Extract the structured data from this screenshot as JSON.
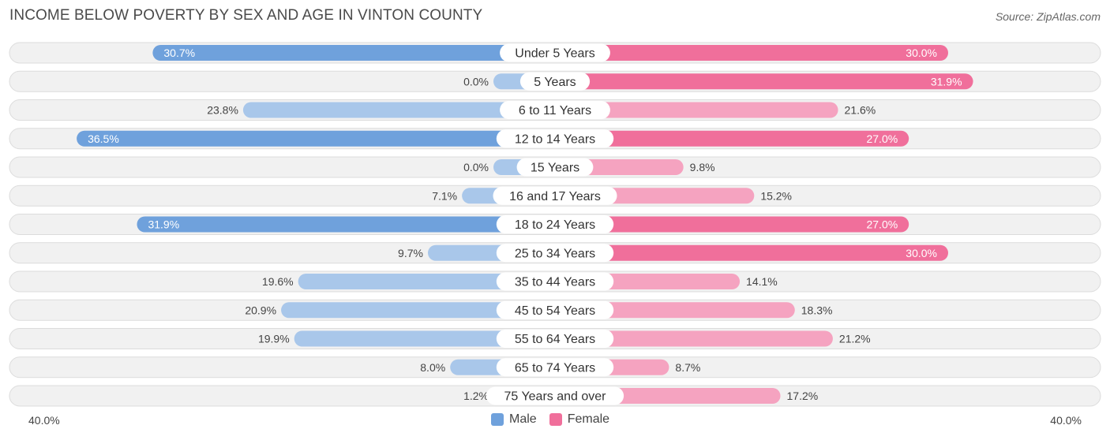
{
  "header": {
    "title": "INCOME BELOW POVERTY BY SEX AND AGE IN VINTON COUNTY",
    "source": "Source: ZipAtlas.com"
  },
  "axis": {
    "left_label": "40.0%",
    "right_label": "40.0%"
  },
  "legend": {
    "male": "Male",
    "female": "Female"
  },
  "colors": {
    "male_strong": "#6fa1dc",
    "male_light": "#a9c7ea",
    "female_strong": "#f06f9b",
    "female_light": "#f5a3c0"
  },
  "chart_data": {
    "type": "bar",
    "orientation": "horizontal-diverging",
    "title": "INCOME BELOW POVERTY BY SEX AND AGE IN VINTON COUNTY",
    "xlim": [
      -40,
      40
    ],
    "categories": [
      "Under 5 Years",
      "5 Years",
      "6 to 11 Years",
      "12 to 14 Years",
      "15 Years",
      "16 and 17 Years",
      "18 to 24 Years",
      "25 to 34 Years",
      "35 to 44 Years",
      "45 to 54 Years",
      "55 to 64 Years",
      "65 to 74 Years",
      "75 Years and over"
    ],
    "series": [
      {
        "name": "Male",
        "values": [
          30.7,
          0.0,
          23.8,
          36.5,
          0.0,
          7.1,
          31.9,
          9.7,
          19.6,
          20.9,
          19.9,
          8.0,
          1.2
        ],
        "labels": [
          "30.7%",
          "0.0%",
          "23.8%",
          "36.5%",
          "0.0%",
          "7.1%",
          "31.9%",
          "9.7%",
          "19.6%",
          "20.9%",
          "19.9%",
          "8.0%",
          "1.2%"
        ]
      },
      {
        "name": "Female",
        "values": [
          30.0,
          31.9,
          21.6,
          27.0,
          9.8,
          15.2,
          27.0,
          30.0,
          14.1,
          18.3,
          21.2,
          8.7,
          17.2
        ],
        "labels": [
          "30.0%",
          "31.9%",
          "21.6%",
          "27.0%",
          "9.8%",
          "15.2%",
          "27.0%",
          "30.0%",
          "14.1%",
          "18.3%",
          "21.2%",
          "8.7%",
          "17.2%"
        ]
      }
    ]
  }
}
